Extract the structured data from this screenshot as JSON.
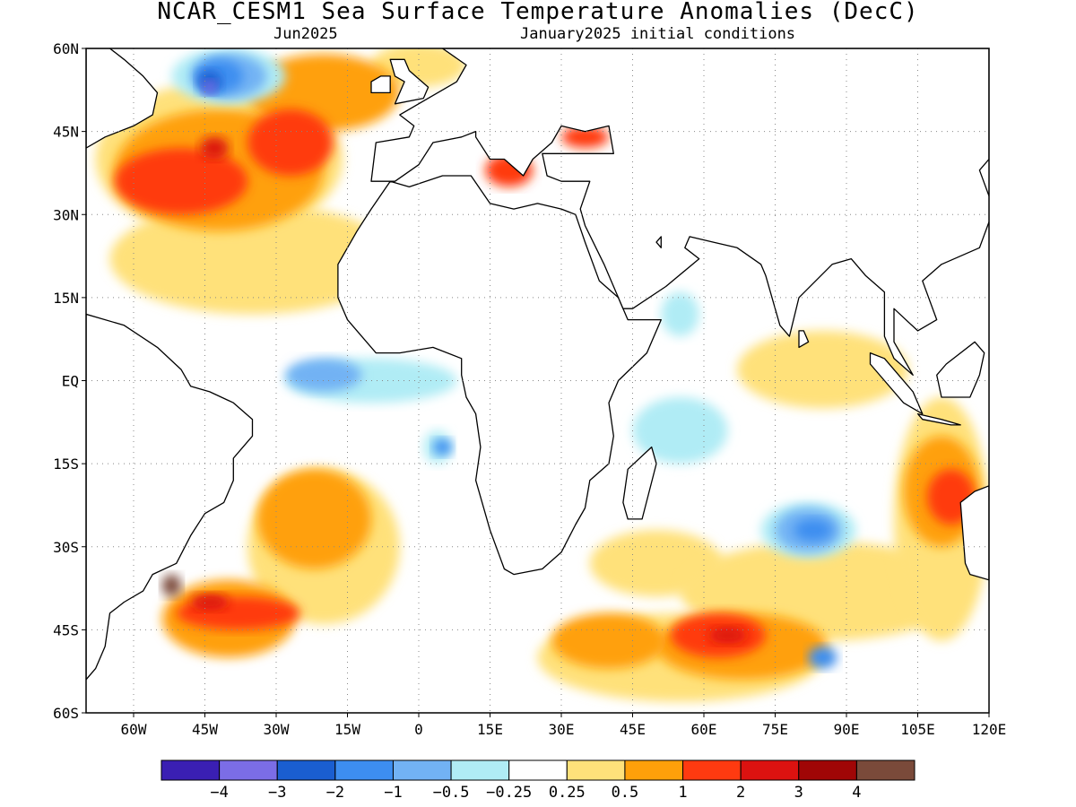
{
  "title": "NCAR_CESM1 Sea Surface Temperature Anomalies (DecC)",
  "subtitle_left": "Jun2025",
  "subtitle_right": "January2025 initial conditions",
  "map": {
    "lon_range": [
      -70,
      120
    ],
    "lat_range": [
      -60,
      60
    ],
    "lat_ticks": [
      {
        "v": 60,
        "label": "60N"
      },
      {
        "v": 45,
        "label": "45N"
      },
      {
        "v": 30,
        "label": "30N"
      },
      {
        "v": 15,
        "label": "15N"
      },
      {
        "v": 0,
        "label": "EQ"
      },
      {
        "v": -15,
        "label": "15S"
      },
      {
        "v": -30,
        "label": "30S"
      },
      {
        "v": -45,
        "label": "45S"
      },
      {
        "v": -60,
        "label": "60S"
      }
    ],
    "lon_ticks": [
      {
        "v": -60,
        "label": "60W"
      },
      {
        "v": -45,
        "label": "45W"
      },
      {
        "v": -30,
        "label": "30W"
      },
      {
        "v": -15,
        "label": "15W"
      },
      {
        "v": 0,
        "label": "0"
      },
      {
        "v": 15,
        "label": "15E"
      },
      {
        "v": 30,
        "label": "30E"
      },
      {
        "v": 45,
        "label": "45E"
      },
      {
        "v": 60,
        "label": "60E"
      },
      {
        "v": 75,
        "label": "75E"
      },
      {
        "v": 90,
        "label": "90E"
      },
      {
        "v": 105,
        "label": "105E"
      },
      {
        "v": 120,
        "label": "120E"
      }
    ],
    "gridlines": true
  },
  "colorbar": {
    "colors": [
      "#3a1fb3",
      "#7b6de6",
      "#1a5ed0",
      "#3d8ef0",
      "#72b2f4",
      "#b0ecf5",
      "#ffffff",
      "#ffe17a",
      "#ffa00a",
      "#ff3a10",
      "#dc1210",
      "#a00606",
      "#7a4a3a"
    ],
    "labels": [
      "−4",
      "−3",
      "−2",
      "−1",
      "−0.5",
      "−0.25",
      "0.25",
      "0.5",
      "1",
      "2",
      "3",
      "4"
    ]
  },
  "anomaly_regions": [
    {
      "level": 0.5,
      "lon": -42,
      "lat": 40,
      "rx": 26,
      "ry": 14
    },
    {
      "level": 0.5,
      "lon": -35,
      "lat": 22,
      "rx": 30,
      "ry": 10
    },
    {
      "level": 0.5,
      "lon": 50,
      "lat": -33,
      "rx": 14,
      "ry": 6
    },
    {
      "level": 0.5,
      "lon": 85,
      "lat": -38,
      "rx": 30,
      "ry": 9
    },
    {
      "level": 0.5,
      "lon": 85,
      "lat": 2,
      "rx": 18,
      "ry": 7
    },
    {
      "level": 0.5,
      "lon": -20,
      "lat": -30,
      "rx": 16,
      "ry": 14
    },
    {
      "level": 0.5,
      "lon": 55,
      "lat": -50,
      "rx": 30,
      "ry": 8
    },
    {
      "level": 0.5,
      "lon": 0,
      "lat": 57,
      "rx": 10,
      "ry": 4
    },
    {
      "level": 0.5,
      "lon": 110,
      "lat": -25,
      "rx": 10,
      "ry": 22
    },
    {
      "level": 1,
      "lon": -42,
      "lat": 38,
      "rx": 22,
      "ry": 11
    },
    {
      "level": 1,
      "lon": -20,
      "lat": 52,
      "rx": 16,
      "ry": 7
    },
    {
      "level": 1,
      "lon": -22,
      "lat": -25,
      "rx": 12,
      "ry": 9
    },
    {
      "level": 1,
      "lon": -40,
      "lat": -43,
      "rx": 14,
      "ry": 7
    },
    {
      "level": 1,
      "lon": 68,
      "lat": -48,
      "rx": 18,
      "ry": 6
    },
    {
      "level": 1,
      "lon": 110,
      "lat": -20,
      "rx": 8,
      "ry": 10
    },
    {
      "level": 1,
      "lon": 40,
      "lat": -47,
      "rx": 12,
      "ry": 5
    },
    {
      "level": 2,
      "lon": -50,
      "lat": 36,
      "rx": 14,
      "ry": 6
    },
    {
      "level": 2,
      "lon": -27,
      "lat": 43,
      "rx": 9,
      "ry": 6
    },
    {
      "level": 2,
      "lon": -38,
      "lat": -42,
      "rx": 13,
      "ry": 3
    },
    {
      "level": 2,
      "lon": 63,
      "lat": -46,
      "rx": 10,
      "ry": 4
    },
    {
      "level": 2,
      "lon": 112,
      "lat": -21,
      "rx": 5,
      "ry": 5
    },
    {
      "level": 2,
      "lon": 19,
      "lat": 38,
      "rx": 5,
      "ry": 3
    },
    {
      "level": 2,
      "lon": 35,
      "lat": 44,
      "rx": 5,
      "ry": 2
    },
    {
      "level": 3,
      "lon": -43,
      "lat": 42,
      "rx": 3,
      "ry": 2
    },
    {
      "level": 3,
      "lon": -44,
      "lat": -40,
      "rx": 4,
      "ry": 1.5
    },
    {
      "level": 3,
      "lon": 65,
      "lat": -46,
      "rx": 4,
      "ry": 1.5
    },
    {
      "level": 4,
      "lon": -52,
      "lat": -37,
      "rx": 2,
      "ry": 2
    },
    {
      "level": -0.25,
      "lon": -10,
      "lat": 0,
      "rx": 18,
      "ry": 4
    },
    {
      "level": -0.25,
      "lon": 55,
      "lat": -9,
      "rx": 10,
      "ry": 6
    },
    {
      "level": -0.25,
      "lon": 55,
      "lat": 12,
      "rx": 4,
      "ry": 4
    },
    {
      "level": -0.25,
      "lon": -40,
      "lat": 55,
      "rx": 12,
      "ry": 5
    },
    {
      "level": -0.25,
      "lon": 82,
      "lat": -27,
      "rx": 10,
      "ry": 5
    },
    {
      "level": -0.25,
      "lon": 4,
      "lat": -12,
      "rx": 3,
      "ry": 3
    },
    {
      "level": -0.5,
      "lon": -20,
      "lat": 1,
      "rx": 8,
      "ry": 3
    },
    {
      "level": -0.5,
      "lon": -40,
      "lat": 55,
      "rx": 8,
      "ry": 4
    },
    {
      "level": -0.5,
      "lon": 82,
      "lat": -27,
      "rx": 7,
      "ry": 4
    },
    {
      "level": -1,
      "lon": -42,
      "lat": 55,
      "rx": 5,
      "ry": 3
    },
    {
      "level": -1,
      "lon": 5,
      "lat": -12,
      "rx": 2,
      "ry": 1.5
    },
    {
      "level": -1,
      "lon": 83,
      "lat": -27,
      "rx": 4,
      "ry": 2
    },
    {
      "level": -1,
      "lon": 85,
      "lat": -50,
      "rx": 3,
      "ry": 2
    },
    {
      "level": -2,
      "lon": -44,
      "lat": 54,
      "rx": 2.5,
      "ry": 2
    },
    {
      "level": -3,
      "lon": -44,
      "lat": 53,
      "rx": 1.5,
      "ry": 1.2
    }
  ],
  "land_polygons": [
    {
      "name": "africa",
      "points": [
        [
          -17,
          21
        ],
        [
          -17,
          15
        ],
        [
          -15,
          11
        ],
        [
          -13,
          9
        ],
        [
          -9,
          5
        ],
        [
          -4,
          5
        ],
        [
          3,
          6
        ],
        [
          9,
          4
        ],
        [
          9,
          1
        ],
        [
          10,
          -3
        ],
        [
          12,
          -6
        ],
        [
          13,
          -12
        ],
        [
          12,
          -18
        ],
        [
          15,
          -27
        ],
        [
          18,
          -34
        ],
        [
          20,
          -35
        ],
        [
          26,
          -34
        ],
        [
          30,
          -31
        ],
        [
          33,
          -26
        ],
        [
          35,
          -23
        ],
        [
          36,
          -18
        ],
        [
          40,
          -15
        ],
        [
          41,
          -10
        ],
        [
          40,
          -4
        ],
        [
          42,
          0
        ],
        [
          48,
          5
        ],
        [
          51,
          11
        ],
        [
          44,
          11
        ],
        [
          42,
          15
        ],
        [
          38,
          18
        ],
        [
          35,
          25
        ],
        [
          33,
          30
        ],
        [
          30,
          31
        ],
        [
          25,
          32
        ],
        [
          20,
          31
        ],
        [
          15,
          32
        ],
        [
          11,
          37
        ],
        [
          5,
          37
        ],
        [
          -2,
          35
        ],
        [
          -6,
          36
        ],
        [
          -10,
          31
        ],
        [
          -13,
          27
        ]
      ]
    },
    {
      "name": "madagascar",
      "points": [
        [
          44,
          -25
        ],
        [
          47,
          -25
        ],
        [
          50,
          -15
        ],
        [
          49,
          -12
        ],
        [
          44,
          -16
        ],
        [
          43,
          -22
        ]
      ]
    },
    {
      "name": "south-america",
      "points": [
        [
          -70,
          12
        ],
        [
          -62,
          10
        ],
        [
          -55,
          6
        ],
        [
          -50,
          2
        ],
        [
          -48,
          -1
        ],
        [
          -44,
          -2
        ],
        [
          -39,
          -4
        ],
        [
          -35,
          -7
        ],
        [
          -35,
          -10
        ],
        [
          -39,
          -14
        ],
        [
          -39,
          -18
        ],
        [
          -41,
          -22
        ],
        [
          -45,
          -24
        ],
        [
          -48,
          -28
        ],
        [
          -51,
          -33
        ],
        [
          -56,
          -35
        ],
        [
          -58,
          -38
        ],
        [
          -62,
          -40
        ],
        [
          -65,
          -42
        ],
        [
          -66,
          -48
        ],
        [
          -68,
          -52
        ],
        [
          -70,
          -54
        ],
        [
          -70,
          12
        ]
      ]
    },
    {
      "name": "north-america",
      "points": [
        [
          -70,
          42
        ],
        [
          -66,
          44
        ],
        [
          -60,
          46
        ],
        [
          -56,
          48
        ],
        [
          -55,
          52
        ],
        [
          -58,
          55
        ],
        [
          -62,
          58
        ],
        [
          -65,
          60
        ],
        [
          -70,
          60
        ]
      ]
    },
    {
      "name": "europe-asia",
      "points": [
        [
          -10,
          36
        ],
        [
          -9,
          43
        ],
        [
          -2,
          44
        ],
        [
          -1,
          46
        ],
        [
          -4,
          48
        ],
        [
          2,
          51
        ],
        [
          8,
          54
        ],
        [
          10,
          57
        ],
        [
          5,
          60
        ],
        [
          120,
          60
        ],
        [
          120,
          40
        ],
        [
          118,
          38
        ],
        [
          121,
          31
        ],
        [
          118,
          24
        ],
        [
          110,
          21
        ],
        [
          106,
          18
        ],
        [
          109,
          11
        ],
        [
          105,
          9
        ],
        [
          100,
          13
        ],
        [
          100,
          7
        ],
        [
          104,
          1
        ],
        [
          100,
          4
        ],
        [
          98,
          8
        ],
        [
          98,
          16
        ],
        [
          94,
          19
        ],
        [
          91,
          22
        ],
        [
          87,
          21
        ],
        [
          80,
          15
        ],
        [
          78,
          8
        ],
        [
          76,
          10
        ],
        [
          73,
          19
        ],
        [
          72,
          21
        ],
        [
          67,
          24
        ],
        [
          62,
          25
        ],
        [
          57,
          26
        ],
        [
          56,
          24
        ],
        [
          59,
          22
        ],
        [
          52,
          17
        ],
        [
          45,
          13
        ],
        [
          43,
          13
        ],
        [
          39,
          21
        ],
        [
          35,
          28
        ],
        [
          34,
          31
        ],
        [
          36,
          36
        ],
        [
          30,
          36
        ],
        [
          27,
          37
        ],
        [
          26,
          41
        ],
        [
          29,
          41
        ],
        [
          41,
          41
        ],
        [
          40,
          46
        ],
        [
          35,
          45
        ],
        [
          30,
          46
        ],
        [
          28,
          43
        ],
        [
          24,
          40
        ],
        [
          22,
          37
        ],
        [
          18,
          40
        ],
        [
          15,
          40
        ],
        [
          12,
          44
        ],
        [
          12,
          45
        ],
        [
          9,
          44
        ],
        [
          3,
          43
        ],
        [
          0,
          39
        ],
        [
          -5,
          36
        ]
      ]
    },
    {
      "name": "britain",
      "points": [
        [
          -5,
          50
        ],
        [
          1,
          51
        ],
        [
          2,
          53
        ],
        [
          -2,
          56
        ],
        [
          -3,
          58
        ],
        [
          -6,
          58
        ],
        [
          -5,
          55
        ],
        [
          -3,
          54
        ],
        [
          -4,
          52
        ]
      ]
    },
    {
      "name": "ireland",
      "points": [
        [
          -10,
          52
        ],
        [
          -6,
          52
        ],
        [
          -6,
          55
        ],
        [
          -8,
          55
        ],
        [
          -10,
          54
        ]
      ]
    },
    {
      "name": "iceland",
      "points": [
        [
          -24,
          64
        ],
        [
          -13,
          64
        ],
        [
          -14,
          66
        ],
        [
          -22,
          66
        ]
      ]
    },
    {
      "name": "sri-lanka",
      "points": [
        [
          80,
          6
        ],
        [
          82,
          7
        ],
        [
          81,
          9
        ],
        [
          80,
          9
        ]
      ]
    },
    {
      "name": "sumatra",
      "points": [
        [
          95,
          5
        ],
        [
          98,
          4
        ],
        [
          104,
          -2
        ],
        [
          106,
          -6
        ],
        [
          102,
          -4
        ],
        [
          98,
          0
        ],
        [
          95,
          3
        ]
      ]
    },
    {
      "name": "java",
      "points": [
        [
          105,
          -6
        ],
        [
          110,
          -7
        ],
        [
          114,
          -8
        ],
        [
          112,
          -8
        ],
        [
          106,
          -7
        ]
      ]
    },
    {
      "name": "borneo",
      "points": [
        [
          109,
          1
        ],
        [
          111,
          3
        ],
        [
          117,
          7
        ],
        [
          119,
          5
        ],
        [
          118,
          1
        ],
        [
          116,
          -3
        ],
        [
          110,
          -3
        ]
      ]
    },
    {
      "name": "australia",
      "points": [
        [
          114,
          -22
        ],
        [
          117,
          -20
        ],
        [
          120,
          -19
        ],
        [
          120,
          -36
        ],
        [
          116,
          -35
        ],
        [
          115,
          -33
        ]
      ]
    },
    {
      "name": "arabia-qatar",
      "points": [
        [
          50,
          25
        ],
        [
          51,
          26
        ],
        [
          51,
          24
        ]
      ]
    }
  ]
}
